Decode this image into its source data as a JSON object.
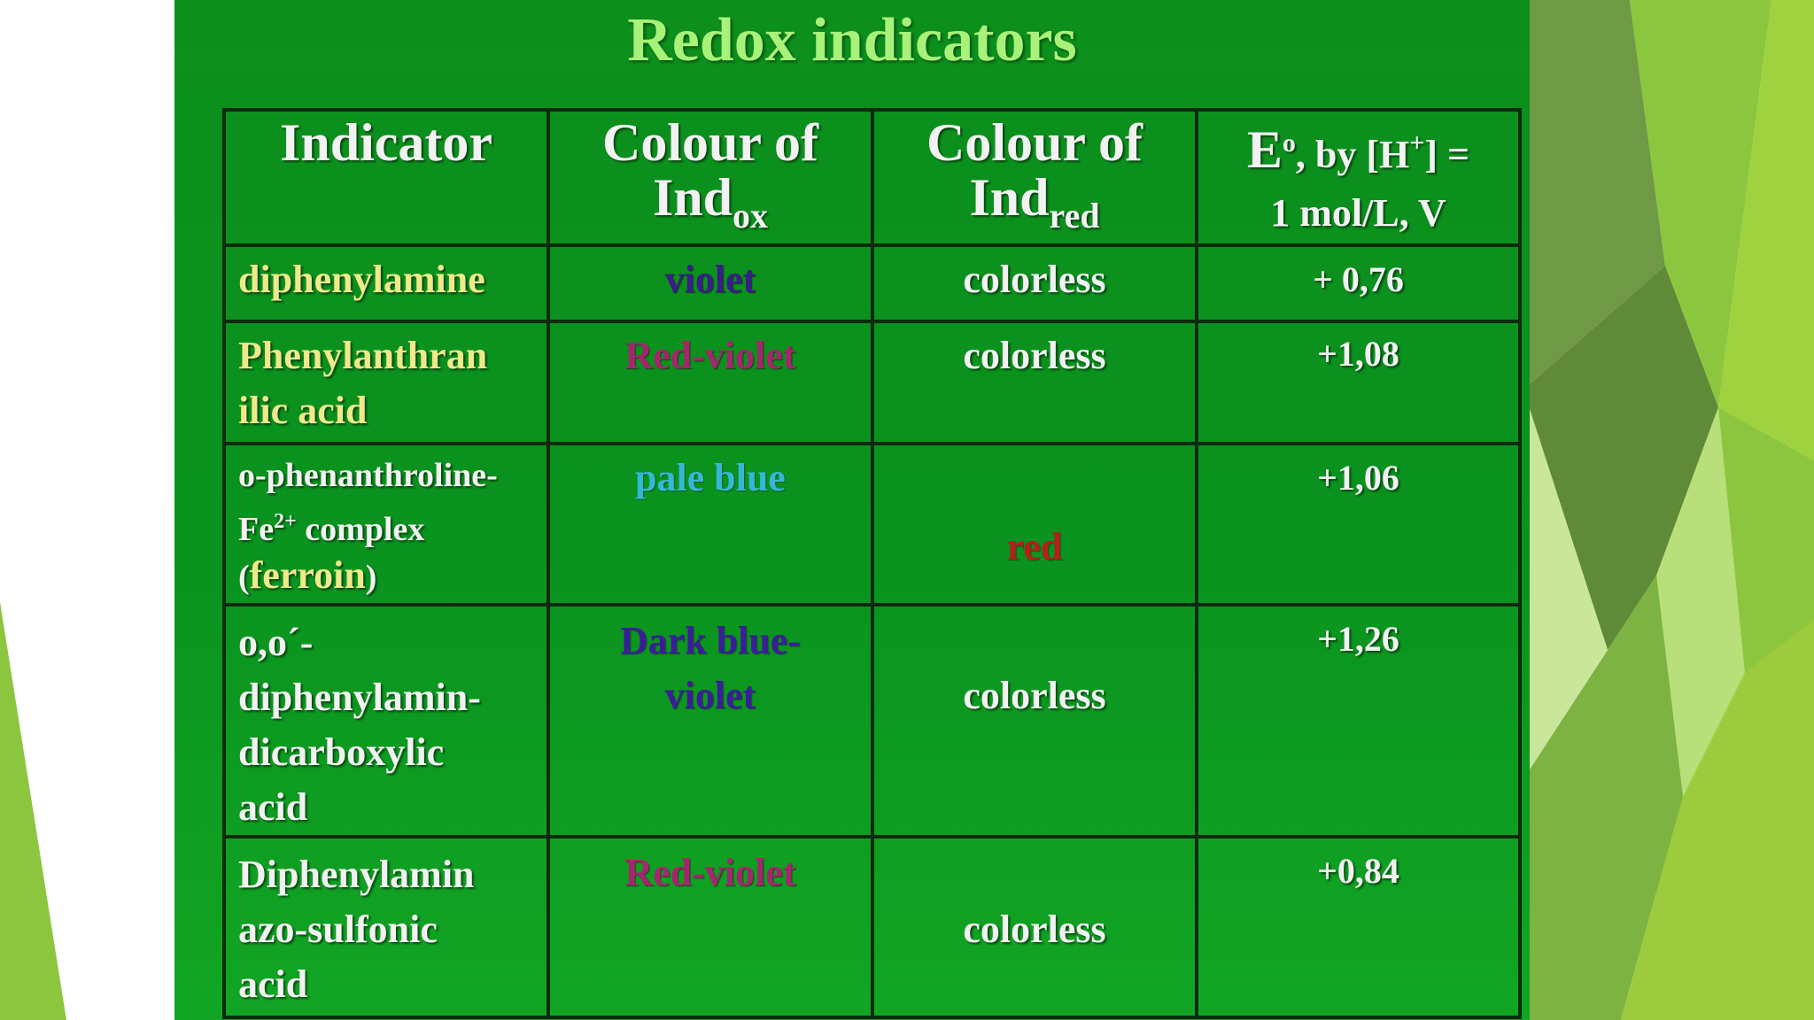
{
  "slide": {
    "title": "Redox indicators",
    "headers": {
      "indicator": "Indicator",
      "colour_ox_text": "Colour of",
      "colour_ox_ind": "Ind",
      "colour_ox_sub": "ox",
      "colour_red_text": "Colour of",
      "colour_red_ind": "Ind",
      "colour_red_sub": "red",
      "potential_e": "E",
      "potential_e_sup": "o",
      "potential_by": ", by [H",
      "potential_h_sup": "+",
      "potential_close": "] =",
      "potential_line2": "1 mol/L, V"
    },
    "rows": [
      {
        "indicator": "diphenylamine",
        "ox_colour": "violet",
        "red_colour": "colorless",
        "potential": "+ 0,76"
      },
      {
        "indicator_line1": "Phenylanthran",
        "indicator_line2": "ilic acid",
        "ox_colour": "Red-violet",
        "red_colour": "colorless",
        "potential": "+1,08"
      },
      {
        "indicator_line1": "o-phenanthroline-",
        "indicator_line2a": "Fe",
        "indicator_line2_sup": "2+",
        "indicator_line2b": " complex",
        "indicator_line3_open": "(",
        "indicator_line3_word": "ferroin",
        "indicator_line3_close": ")",
        "ox_colour": "pale blue",
        "red_colour": "red",
        "potential": "+1,06"
      },
      {
        "indicator_line1": "o,o´-",
        "indicator_line2": "diphenylamin-",
        "indicator_line3": "dicarboxylic",
        "indicator_line4": "acid",
        "ox_colour_line1": "Dark blue-",
        "ox_colour_line2": "violet",
        "red_colour": "colorless",
        "potential": "+1,26"
      },
      {
        "indicator_line1": "Diphenylamin",
        "indicator_line2": "azo-sulfonic",
        "indicator_line3": "acid",
        "ox_colour": "Red-violet",
        "red_colour": "colorless",
        "potential": "+0,84"
      }
    ]
  },
  "colors": {
    "slide_green": "#0d8f1c",
    "title_green": "#a8f27a",
    "yellow_text": "#efe98a",
    "violet": "#3a1c8a",
    "red_violet": "#a8246e",
    "pale_blue": "#35b8d6",
    "red": "#b5201a"
  }
}
